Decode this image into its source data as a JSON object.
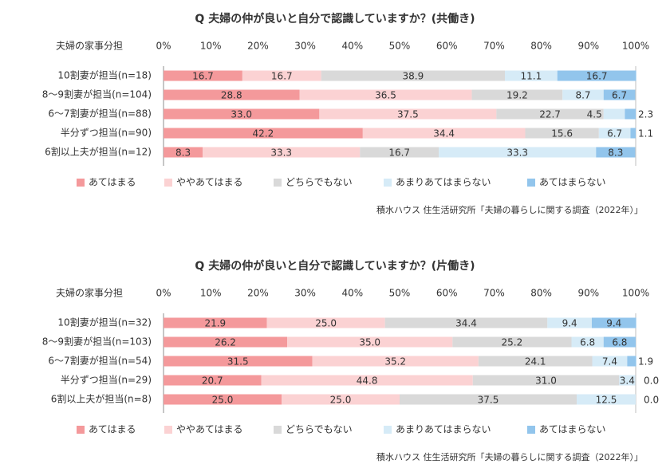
{
  "colors": {
    "seg1": "#f4999b",
    "seg2": "#fbd2d3",
    "seg3": "#d9d9d9",
    "seg4": "#d6ebf7",
    "seg5": "#92c5ec",
    "grid": "#bfbfbf",
    "text": "#333333"
  },
  "chart_data": [
    {
      "type": "bar",
      "orientation": "horizontal",
      "stacked": true,
      "title": "Q 夫婦の仲が良いと自分で認識していますか？(共働き)",
      "row_header": "夫婦の家事分担",
      "xlim": [
        0,
        100
      ],
      "x_ticks": [
        "0%",
        "10%",
        "20%",
        "30%",
        "40%",
        "50%",
        "60%",
        "70%",
        "80%",
        "90%",
        "100%"
      ],
      "categories": [
        "10割妻が担当(n=18)",
        "8～9割妻が担当(n=104)",
        "6～7割妻が担当(n=88)",
        "半分ずつ担当(n=90)",
        "6割以上夫が担当(n=12)"
      ],
      "series": [
        {
          "name": "あてはまる",
          "values": [
            16.7,
            28.8,
            33.0,
            42.2,
            8.3
          ],
          "labels": [
            "16.7",
            "28.8",
            "33.0",
            "42.2",
            "8.3"
          ]
        },
        {
          "name": "ややあてはまる",
          "values": [
            16.7,
            36.5,
            37.5,
            34.4,
            33.3
          ],
          "labels": [
            "16.7",
            "36.5",
            "37.5",
            "34.4",
            "33.3"
          ]
        },
        {
          "name": "どちらでもない",
          "values": [
            38.9,
            19.2,
            22.7,
            15.6,
            16.7
          ],
          "labels": [
            "38.9",
            "19.2",
            "22.7",
            "15.6",
            "16.7"
          ]
        },
        {
          "name": "あまりあてはまらない",
          "values": [
            11.1,
            8.7,
            4.5,
            6.7,
            33.3
          ],
          "labels": [
            "11.1",
            "8.7",
            "4.5",
            "6.7",
            "33.3"
          ]
        },
        {
          "name": "あてはまらない",
          "values": [
            16.7,
            6.7,
            2.3,
            1.1,
            8.3
          ],
          "labels": [
            "16.7",
            "6.7",
            "2.3",
            "1.1",
            "8.3"
          ]
        }
      ],
      "source": "積水ハウス 住生活研究所「夫婦の暮らしに関する調査（2022年）」"
    },
    {
      "type": "bar",
      "orientation": "horizontal",
      "stacked": true,
      "title": "Q 夫婦の仲が良いと自分で認識していますか？(片働き)",
      "row_header": "夫婦の家事分担",
      "xlim": [
        0,
        100
      ],
      "x_ticks": [
        "0%",
        "10%",
        "20%",
        "30%",
        "40%",
        "50%",
        "60%",
        "70%",
        "80%",
        "90%",
        "100%"
      ],
      "categories": [
        "10割妻が担当(n=32)",
        "8～9割妻が担当(n=103)",
        "6～7割妻が担当(n=54)",
        "半分ずつ担当(n=29)",
        "6割以上夫が担当(n=8)"
      ],
      "series": [
        {
          "name": "あてはまる",
          "values": [
            21.9,
            26.2,
            31.5,
            20.7,
            25.0
          ],
          "labels": [
            "21.9",
            "26.2",
            "31.5",
            "20.7",
            "25.0"
          ]
        },
        {
          "name": "ややあてはまる",
          "values": [
            25.0,
            35.0,
            35.2,
            44.8,
            25.0
          ],
          "labels": [
            "25.0",
            "35.0",
            "35.2",
            "44.8",
            "25.0"
          ]
        },
        {
          "name": "どちらでもない",
          "values": [
            34.4,
            25.2,
            24.1,
            31.0,
            37.5
          ],
          "labels": [
            "34.4",
            "25.2",
            "24.1",
            "31.0",
            "37.5"
          ]
        },
        {
          "name": "あまりあてはまらない",
          "values": [
            9.4,
            6.8,
            7.4,
            3.4,
            12.5
          ],
          "labels": [
            "9.4",
            "6.8",
            "7.4",
            "3.4",
            "12.5"
          ]
        },
        {
          "name": "あてはまらない",
          "values": [
            9.4,
            6.8,
            1.9,
            0.0,
            0.0
          ],
          "labels": [
            "9.4",
            "6.8",
            "1.9",
            "0.0",
            "0.0"
          ]
        }
      ],
      "source": "積水ハウス 住生活研究所「夫婦の暮らしに関する調査（2022年）」"
    }
  ]
}
